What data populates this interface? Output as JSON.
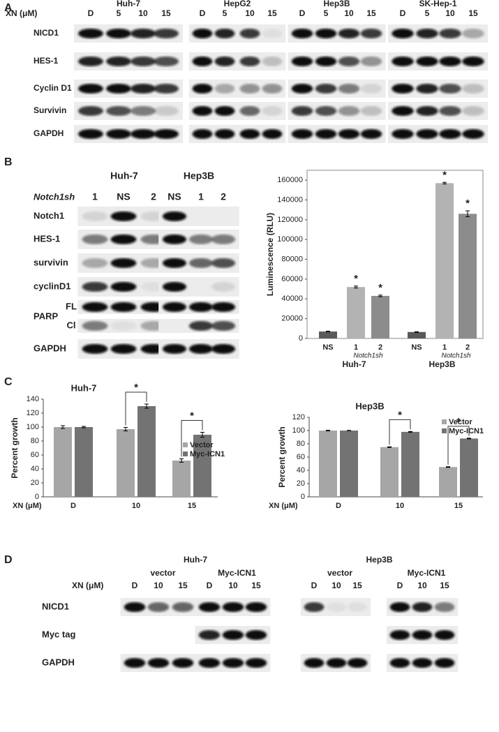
{
  "panel_labels": [
    "A",
    "B",
    "C",
    "D"
  ],
  "panel_a": {
    "xn_label": "XN (μM)",
    "cell_lines": [
      "Huh-7",
      "HepG2",
      "Hep3B",
      "SK-Hep-1"
    ],
    "lanes": [
      "D",
      "5",
      "10",
      "15"
    ],
    "rows": [
      "NICD1",
      "HES-1",
      "Cyclin D1",
      "Survivin",
      "GAPDH"
    ]
  },
  "panel_b": {
    "sh_label": "Notch1sh",
    "blots": [
      {
        "cell_line": "Huh-7",
        "lanes": [
          "1",
          "NS",
          "2"
        ]
      },
      {
        "cell_line": "Hep3B",
        "lanes": [
          "NS",
          "1",
          "2"
        ]
      }
    ],
    "rows": [
      "Notch1",
      "HES-1",
      "survivin",
      "cyclinD1",
      "PARP",
      "GAPDH"
    ],
    "parp_bands": [
      "FL",
      "Cl"
    ]
  },
  "panel_d": {
    "xn_label": "XN (μM)",
    "cell_lines": [
      "Huh-7",
      "Hep3B"
    ],
    "groups": [
      "vector",
      "Myc-ICN1"
    ],
    "lanes": [
      "D",
      "10",
      "15"
    ],
    "rows": [
      "NICD1",
      "Myc tag",
      "GAPDH"
    ]
  },
  "chart_data": [
    {
      "type": "bar",
      "y_label": "Luminescence (RLU)",
      "categories": [
        "NS",
        "1",
        "2",
        "NS",
        "1",
        "2"
      ],
      "groups": [
        {
          "name": "Huh-7",
          "sublabel": "Notch1sh"
        },
        {
          "name": "Hep3B",
          "sublabel": "Notch1sh"
        }
      ],
      "values": [
        7000,
        52000,
        43000,
        6500,
        157000,
        126000
      ],
      "errors": [
        300,
        1000,
        800,
        300,
        800,
        3000
      ],
      "colors": [
        "#595959",
        "#b3b3b3",
        "#8c8c8c",
        "#595959",
        "#b3b3b3",
        "#8c8c8c"
      ],
      "significant": [
        false,
        true,
        true,
        false,
        true,
        true
      ],
      "marker": "*",
      "box": true,
      "ylim": [
        0,
        170000
      ],
      "yticks": [
        0,
        20000,
        40000,
        60000,
        80000,
        100000,
        120000,
        140000,
        160000
      ]
    },
    {
      "type": "bar",
      "title": "Huh-7",
      "y_label": "Percent growth",
      "x_label": "XN (μM)",
      "categories": [
        "D",
        "10",
        "15"
      ],
      "series": [
        {
          "name": "Vector",
          "color": "#a6a6a6",
          "values": [
            100,
            97,
            52
          ],
          "errors": [
            2,
            2.5,
            2.5
          ]
        },
        {
          "name": "Myc-ICN1",
          "color": "#737373",
          "values": [
            100,
            130,
            89
          ],
          "errors": [
            1,
            3,
            3.5
          ]
        }
      ],
      "significant": [
        false,
        true,
        true
      ],
      "marker": "*",
      "box": false,
      "legend": "right",
      "ylim": [
        0,
        140
      ],
      "yticks": [
        0,
        20,
        40,
        60,
        80,
        100,
        120,
        140
      ]
    },
    {
      "type": "bar",
      "title": "Hep3B",
      "y_label": "Percent growth",
      "x_label": "XN (μM)",
      "categories": [
        "D",
        "10",
        "15"
      ],
      "series": [
        {
          "name": "Vector",
          "color": "#a6a6a6",
          "values": [
            100,
            75,
            45
          ],
          "errors": [
            0.5,
            0.5,
            0.5
          ]
        },
        {
          "name": "Myc-ICN1",
          "color": "#737373",
          "values": [
            100,
            98,
            88
          ],
          "errors": [
            0.3,
            0.5,
            0.5
          ]
        }
      ],
      "significant": [
        false,
        true,
        true
      ],
      "marker": "*",
      "box": false,
      "legend": "right",
      "ylim": [
        0,
        120
      ],
      "yticks": [
        0,
        20,
        40,
        60,
        80,
        100,
        120
      ]
    }
  ]
}
